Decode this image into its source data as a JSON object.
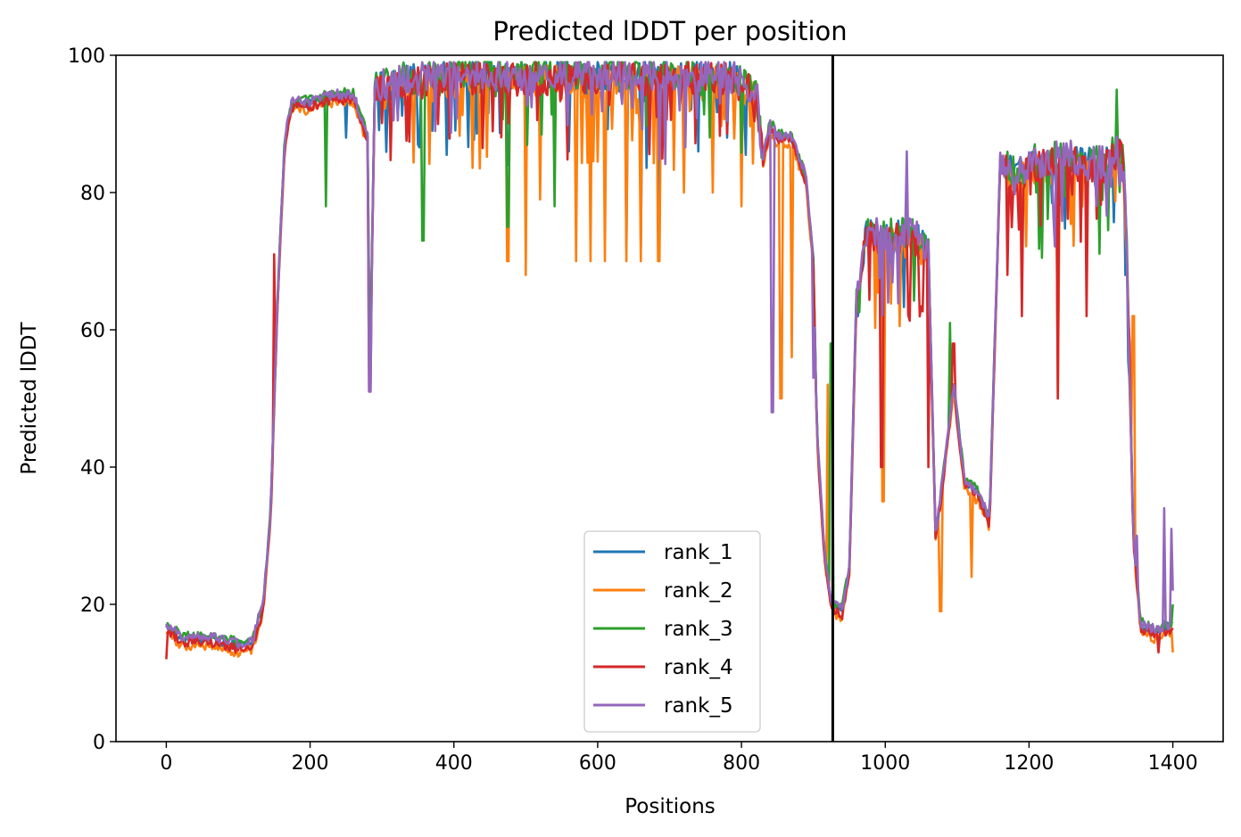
{
  "chart_data": {
    "type": "line",
    "title": "Predicted lDDT per position",
    "xlabel": "Positions",
    "ylabel": "Predicted lDDT",
    "xlim": [
      -70,
      1470
    ],
    "ylim": [
      0,
      100
    ],
    "xticks": [
      0,
      200,
      400,
      600,
      800,
      1000,
      1200,
      1400
    ],
    "yticks": [
      0,
      20,
      40,
      60,
      80,
      100
    ],
    "xtick_labels": [
      "0",
      "200",
      "400",
      "600",
      "800",
      "1000",
      "1200",
      "1400"
    ],
    "ytick_labels": [
      "0",
      "20",
      "40",
      "60",
      "80",
      "100"
    ],
    "vertical_line": {
      "x": 927,
      "color": "#000000"
    },
    "legend": {
      "position": "lower-center"
    },
    "grid": false,
    "base_profile": {
      "x": [
        0,
        20,
        60,
        100,
        120,
        135,
        145,
        155,
        165,
        175,
        200,
        230,
        260,
        280,
        283,
        290,
        320,
        400,
        600,
        780,
        820,
        830,
        840,
        850,
        870,
        890,
        900,
        905,
        915,
        925,
        940,
        950,
        960,
        975,
        1000,
        1030,
        1060,
        1070,
        1080,
        1095,
        1110,
        1130,
        1145,
        1160,
        1180,
        1200,
        1250,
        1300,
        1330,
        1335,
        1345,
        1355,
        1375,
        1400
      ],
      "y": [
        17,
        15,
        15,
        14,
        14.5,
        20,
        33,
        65,
        88,
        93,
        93,
        94,
        94,
        88,
        52,
        95,
        96,
        97,
        97,
        97,
        95,
        85,
        90,
        88,
        88,
        82,
        70,
        45,
        28,
        20,
        19,
        25,
        65,
        74,
        73,
        74,
        72,
        30,
        38,
        52,
        38,
        36,
        32,
        85,
        82,
        84,
        85,
        84,
        86,
        75,
        30,
        17,
        16,
        17
      ]
    },
    "series": [
      {
        "name": "rank_1",
        "color": "#1f77b4",
        "offset": 0,
        "dips": [
          [
            660,
            72
          ],
          [
            640,
            72
          ],
          [
            686,
            73
          ],
          [
            250,
            88
          ],
          [
            350,
            87
          ],
          [
            475,
            84
          ],
          [
            560,
            86
          ],
          [
            740,
            86
          ],
          [
            780,
            88
          ]
        ]
      },
      {
        "name": "rank_2",
        "color": "#ff7f0e",
        "offset": -1,
        "dips": [
          [
            475,
            70
          ],
          [
            500,
            68
          ],
          [
            520,
            79
          ],
          [
            570,
            70
          ],
          [
            590,
            70
          ],
          [
            610,
            70
          ],
          [
            640,
            70
          ],
          [
            660,
            70
          ],
          [
            685,
            70
          ],
          [
            720,
            80
          ],
          [
            760,
            80
          ],
          [
            800,
            78
          ],
          [
            855,
            50
          ],
          [
            870,
            56
          ],
          [
            920,
            52
          ],
          [
            997,
            35
          ],
          [
            1077,
            19
          ],
          [
            1120,
            24
          ],
          [
            1240,
            50
          ],
          [
            1345,
            62
          ],
          [
            1400,
            13
          ]
        ]
      },
      {
        "name": "rank_3",
        "color": "#2ca02c",
        "offset": 0.5,
        "dips": [
          [
            222,
            78
          ],
          [
            357,
            73
          ],
          [
            475,
            75
          ],
          [
            540,
            78
          ],
          [
            888,
            82
          ],
          [
            925,
            58
          ],
          [
            1090,
            61
          ],
          [
            1210,
            80
          ],
          [
            1322,
            95
          ],
          [
            1400,
            20
          ]
        ]
      },
      {
        "name": "rank_4",
        "color": "#d62728",
        "offset": -0.5,
        "dips": [
          [
            0,
            12
          ],
          [
            150,
            71
          ],
          [
            283,
            51
          ],
          [
            995,
            40
          ],
          [
            1060,
            40
          ],
          [
            1095,
            58
          ],
          [
            1170,
            68
          ],
          [
            1190,
            62
          ],
          [
            1240,
            50
          ],
          [
            1280,
            62
          ],
          [
            1340,
            58
          ],
          [
            1380,
            13
          ]
        ]
      },
      {
        "name": "rank_5",
        "color": "#9467bd",
        "offset": 0.3,
        "dips": [
          [
            283,
            51
          ],
          [
            843,
            48
          ],
          [
            900,
            53
          ],
          [
            1030,
            86
          ],
          [
            1100,
            48
          ],
          [
            1350,
            30
          ],
          [
            1388,
            34
          ],
          [
            1398,
            31
          ],
          [
            1400,
            22
          ]
        ]
      }
    ]
  }
}
